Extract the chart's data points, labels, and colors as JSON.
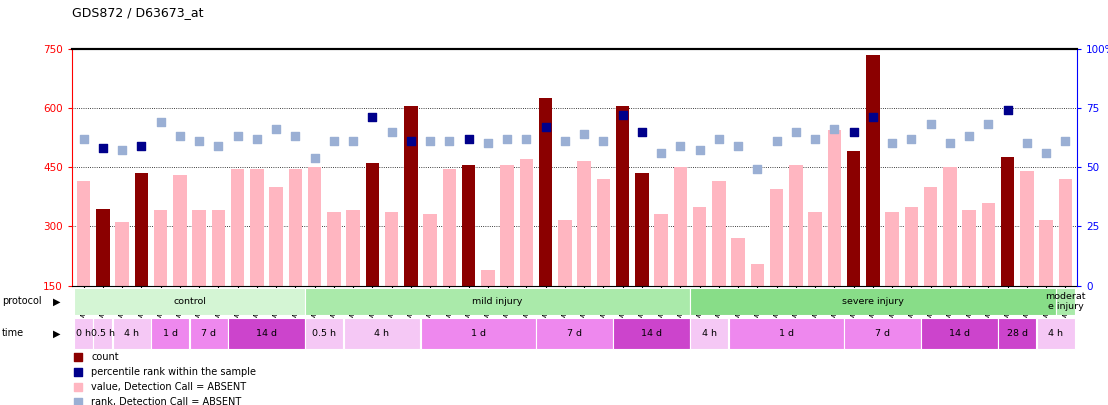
{
  "title": "GDS872 / D63673_at",
  "samples": [
    "GSM31414",
    "GSM31415",
    "GSM31405",
    "GSM31406",
    "GSM31412",
    "GSM31413",
    "GSM31400",
    "GSM31401",
    "GSM31410",
    "GSM31411",
    "GSM31396",
    "GSM31397",
    "GSM31439",
    "GSM31442",
    "GSM31443",
    "GSM31446",
    "GSM31447",
    "GSM31448",
    "GSM31449",
    "GSM31450",
    "GSM31431",
    "GSM31432",
    "GSM31433",
    "GSM31434",
    "GSM31451",
    "GSM31452",
    "GSM31454",
    "GSM31455",
    "GSM31423",
    "GSM31424",
    "GSM31425",
    "GSM31430",
    "GSM31483",
    "GSM31491",
    "GSM31492",
    "GSM31507",
    "GSM31466",
    "GSM31469",
    "GSM31473",
    "GSM31478",
    "GSM31493",
    "GSM31497",
    "GSM31498",
    "GSM31500",
    "GSM31457",
    "GSM31458",
    "GSM31459",
    "GSM31475",
    "GSM31482",
    "GSM31488",
    "GSM31453",
    "GSM31464"
  ],
  "values": [
    415,
    345,
    310,
    435,
    340,
    430,
    340,
    340,
    445,
    445,
    400,
    445,
    450,
    335,
    340,
    460,
    335,
    605,
    330,
    445,
    455,
    190,
    455,
    470,
    625,
    315,
    465,
    420,
    605,
    435,
    330,
    450,
    350,
    415,
    270,
    205,
    395,
    455,
    335,
    545,
    490,
    735,
    335,
    350,
    400,
    450,
    340,
    360,
    475,
    440,
    315,
    420
  ],
  "rank_pcts": [
    62,
    58,
    57,
    59,
    69,
    63,
    61,
    59,
    63,
    62,
    66,
    63,
    54,
    61,
    61,
    71,
    65,
    61,
    61,
    61,
    62,
    60,
    62,
    62,
    67,
    61,
    64,
    61,
    72,
    65,
    56,
    59,
    57,
    62,
    59,
    49,
    61,
    65,
    62,
    66,
    65,
    71,
    60,
    62,
    68,
    60,
    63,
    68,
    74,
    60,
    56,
    61
  ],
  "is_dark": [
    false,
    true,
    false,
    true,
    false,
    false,
    false,
    false,
    false,
    false,
    false,
    false,
    false,
    false,
    false,
    true,
    false,
    true,
    false,
    false,
    true,
    false,
    false,
    false,
    true,
    false,
    false,
    false,
    true,
    true,
    false,
    false,
    false,
    false,
    false,
    false,
    false,
    false,
    false,
    false,
    true,
    true,
    false,
    false,
    false,
    false,
    false,
    false,
    true,
    false,
    false,
    false
  ],
  "ylim_left": [
    150,
    750
  ],
  "ylim_right": [
    0,
    100
  ],
  "yticks_left": [
    150,
    300,
    450,
    600,
    750
  ],
  "yticks_right": [
    0,
    25,
    50,
    75,
    100
  ],
  "protocol_groups": [
    {
      "label": "control",
      "start": 0,
      "end": 11,
      "color": "#d4f5d4"
    },
    {
      "label": "mild injury",
      "start": 12,
      "end": 31,
      "color": "#aaeaaa"
    },
    {
      "label": "severe injury",
      "start": 32,
      "end": 50,
      "color": "#88dd88"
    },
    {
      "label": "moderat\ne injury",
      "start": 51,
      "end": 51,
      "color": "#aaeaaa"
    }
  ],
  "time_groups": [
    {
      "label": "0 h",
      "start": 0,
      "end": 0
    },
    {
      "label": "0.5 h",
      "start": 1,
      "end": 1
    },
    {
      "label": "4 h",
      "start": 2,
      "end": 3
    },
    {
      "label": "1 d",
      "start": 4,
      "end": 5
    },
    {
      "label": "7 d",
      "start": 6,
      "end": 7
    },
    {
      "label": "14 d",
      "start": 8,
      "end": 11
    },
    {
      "label": "0.5 h",
      "start": 12,
      "end": 13
    },
    {
      "label": "4 h",
      "start": 14,
      "end": 17
    },
    {
      "label": "1 d",
      "start": 18,
      "end": 23
    },
    {
      "label": "7 d",
      "start": 24,
      "end": 27
    },
    {
      "label": "14 d",
      "start": 28,
      "end": 31
    },
    {
      "label": "4 h",
      "start": 32,
      "end": 33
    },
    {
      "label": "1 d",
      "start": 34,
      "end": 39
    },
    {
      "label": "7 d",
      "start": 40,
      "end": 43
    },
    {
      "label": "14 d",
      "start": 44,
      "end": 47
    },
    {
      "label": "28 d",
      "start": 48,
      "end": 49
    },
    {
      "label": "4 h",
      "start": 50,
      "end": 51
    }
  ],
  "time_colors": {
    "0 h": "#f5c8f5",
    "0.5 h": "#f5c8f5",
    "4 h": "#f5c8f5",
    "1 d": "#ee88ee",
    "7 d": "#ee88ee",
    "14 d": "#cc44cc",
    "28 d": "#cc44cc"
  },
  "bar_color_dark": "#8B0000",
  "bar_color_light": "#FFB6C1",
  "rank_color_dark": "#00008B",
  "rank_color_light": "#9aafd4",
  "dot_size": 28,
  "background_color": "#ffffff",
  "grid_color": "#000000",
  "legend_items": [
    {
      "label": "count",
      "color": "#8B0000"
    },
    {
      "label": "percentile rank within the sample",
      "color": "#00008B"
    },
    {
      "label": "value, Detection Call = ABSENT",
      "color": "#FFB6C1"
    },
    {
      "label": "rank, Detection Call = ABSENT",
      "color": "#9aafd4"
    }
  ]
}
